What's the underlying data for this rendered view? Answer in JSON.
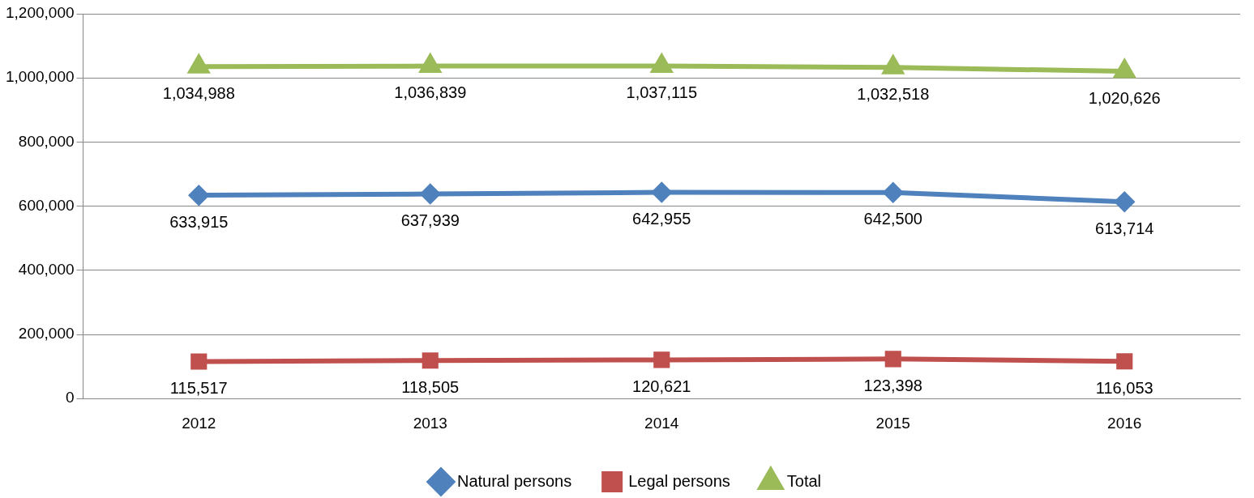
{
  "chart_data": {
    "type": "line",
    "categories": [
      "2012",
      "2013",
      "2014",
      "2015",
      "2016"
    ],
    "series": [
      {
        "name": "Natural persons",
        "color": "#4f81bd",
        "marker": "diamond",
        "values": [
          633915,
          637939,
          642955,
          642500,
          613714
        ],
        "value_labels": [
          "633,915",
          "637,939",
          "642,955",
          "642,500",
          "613,714"
        ]
      },
      {
        "name": "Legal persons",
        "color": "#c0504d",
        "marker": "square",
        "values": [
          115517,
          118505,
          120621,
          123398,
          116053
        ],
        "value_labels": [
          "115,517",
          "118,505",
          "120,621",
          "123,398",
          "116,053"
        ]
      },
      {
        "name": "Total",
        "color": "#9bbb59",
        "marker": "triangle",
        "values": [
          1034988,
          1036839,
          1037115,
          1032518,
          1020626
        ],
        "value_labels": [
          "1,034,988",
          "1,036,839",
          "1,037,115",
          "1,032,518",
          "1,020,626"
        ]
      }
    ],
    "ylim": [
      0,
      1200000
    ],
    "yticks": [
      {
        "value": 0,
        "label": "0"
      },
      {
        "value": 200000,
        "label": "200,000"
      },
      {
        "value": 400000,
        "label": "400,000"
      },
      {
        "value": 600000,
        "label": "600,000"
      },
      {
        "value": 800000,
        "label": "800,000"
      },
      {
        "value": 1000000,
        "label": "1,000,000"
      },
      {
        "value": 1200000,
        "label": "1,200,000"
      }
    ],
    "grid": "y",
    "legend": "bottom",
    "line_style": "solid"
  }
}
